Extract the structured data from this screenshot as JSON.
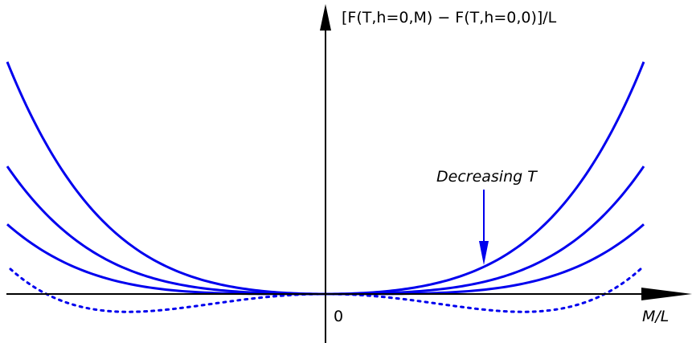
{
  "chart_data": {
    "type": "line",
    "title": "",
    "ylabel": "[F(T,h=0,M) − F(T,h=0,0)]/L",
    "xlabel": "M/L",
    "origin_label": "0",
    "annotation": "Decreasing T",
    "xlim": [
      -1,
      1
    ],
    "ylim": [
      -0.13,
      1.1
    ],
    "colors": {
      "curve": "#0000ee",
      "axis": "#000000"
    },
    "grid": false,
    "series": [
      {
        "style": "solid",
        "coef": [
          0.3,
          0.7
        ],
        "x_range": [
          -1,
          1
        ]
      },
      {
        "style": "solid",
        "coef": [
          0.1,
          0.45
        ],
        "x_range": [
          -1,
          1
        ]
      },
      {
        "style": "solid",
        "coef": [
          0.0,
          0.3
        ],
        "x_range": [
          -1,
          1
        ]
      },
      {
        "style": "dotted",
        "coef": [
          -0.4,
          0.52
        ],
        "x_range": [
          -0.99,
          0.99
        ]
      }
    ]
  }
}
